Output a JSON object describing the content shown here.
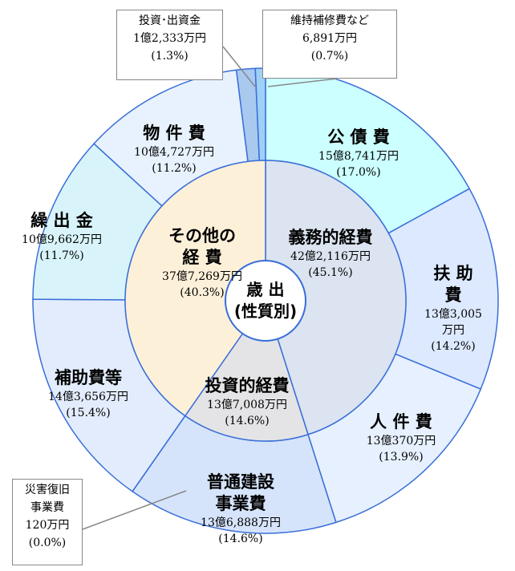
{
  "chart_data": {
    "type": "pie",
    "title": "歳 出\n(性質別)",
    "outer": {
      "categories": [
        "公 債 費",
        "扶 助 費",
        "人 件 費",
        "普通建設\n事業費",
        "災害復旧\n事業費",
        "補助費等",
        "繰 出 金",
        "物 件 費",
        "投資･出資金",
        "維持補修費など"
      ],
      "amounts": [
        "15億8,741万円",
        "13億3,005万円",
        "13億370万円",
        "13億6,888万円",
        "120万円",
        "14億3,656万円",
        "10億9,662万円",
        "10億4,727万円",
        "1億2,333万円",
        "6,891万円"
      ],
      "values": [
        17.0,
        14.2,
        13.9,
        14.6,
        0.0,
        15.4,
        11.7,
        11.2,
        1.3,
        0.7
      ],
      "value_labels": [
        "(17.0%)",
        "(14.2%)",
        "(13.9%)",
        "(14.6%)",
        "(0.0%)",
        "(15.4%)",
        "(11.7%)",
        "(11.2%)",
        "(1.3%)",
        "(0.7%)"
      ],
      "colors": [
        "#ccffff",
        "#dce9ff",
        "#e6f0ff",
        "#d6e4fb",
        "#eeeeee",
        "#e2ecfc",
        "#d8f4fa",
        "#e8f2ff",
        "#a9c9ef",
        "#9fd0f5"
      ]
    },
    "inner": {
      "categories": [
        "義務的経費",
        "投資的経費",
        "その他の\n経 費"
      ],
      "amounts": [
        "42億2,116万円",
        "13億7,008万円",
        "37億7,269万円"
      ],
      "values": [
        45.1,
        14.6,
        40.3
      ],
      "value_labels": [
        "(45.1%)",
        "(14.6%)",
        "(40.3%)"
      ],
      "colors": [
        "#dbe4f0",
        "#e4e4e6",
        "#fdf0d9"
      ]
    }
  }
}
